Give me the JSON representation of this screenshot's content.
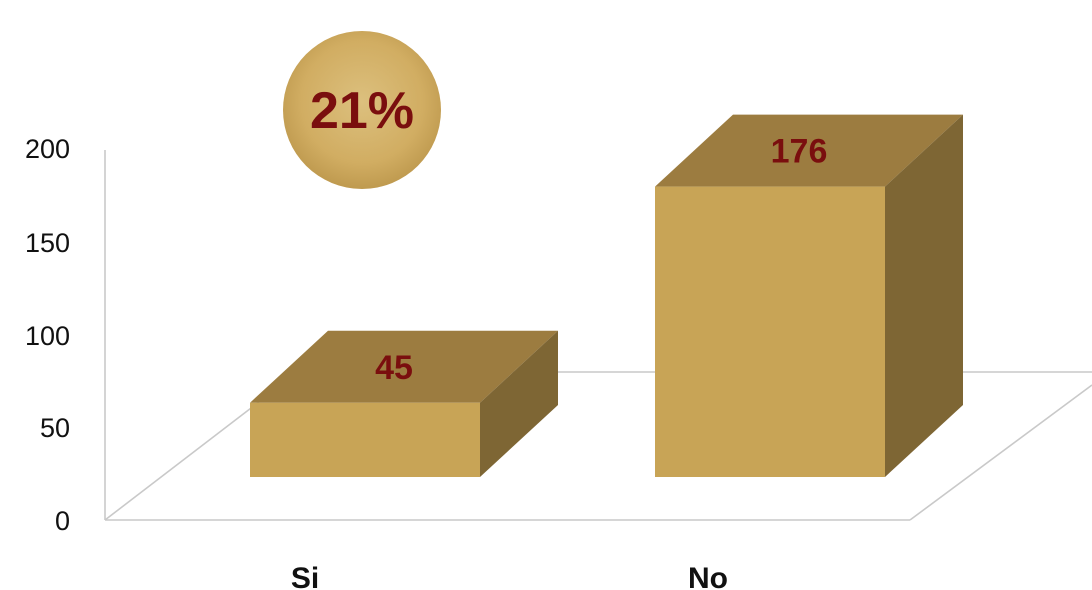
{
  "chart_data": {
    "type": "bar",
    "categories": [
      "Si",
      "No"
    ],
    "values": [
      45,
      176
    ],
    "ylim": [
      0,
      200
    ],
    "yticks": [
      0,
      50,
      100,
      150,
      200
    ],
    "grid": false,
    "data_labels": [
      "45",
      "176"
    ],
    "annotation": "21%"
  },
  "colors": {
    "bar_front": "#c8a456",
    "bar_top": "#9c7c40",
    "bar_side": "#7e6634",
    "data_label": "#7a0e0e",
    "badge_fill": "#d4b267",
    "axis": "#c9c9c9"
  }
}
